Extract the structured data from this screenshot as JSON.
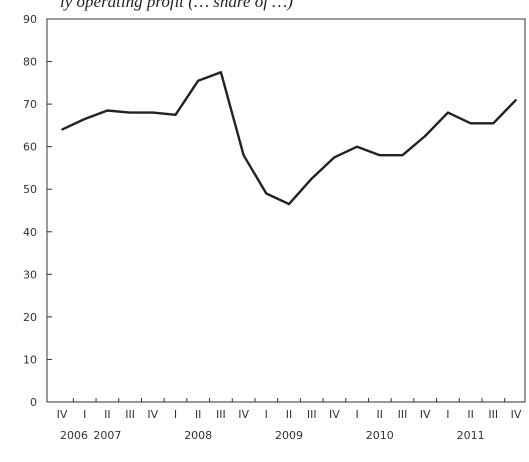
{
  "chart_data": {
    "type": "line",
    "title": "ly operating profit (… share of …)",
    "ylim": [
      0,
      90
    ],
    "yticks": [
      0,
      10,
      20,
      30,
      40,
      50,
      60,
      70,
      80,
      90
    ],
    "grid": false,
    "x_quarter_labels": [
      "IV",
      "I",
      "II",
      "III",
      "IV",
      "I",
      "II",
      "III",
      "IV",
      "I",
      "II",
      "III",
      "IV",
      "I",
      "II",
      "III",
      "IV",
      "I",
      "II",
      "III",
      "IV"
    ],
    "x_year_labels": [
      {
        "label": "2006",
        "quarter_index": 0
      },
      {
        "label": "2007",
        "quarter_index": 2
      },
      {
        "label": "2008",
        "quarter_index": 6
      },
      {
        "label": "2009",
        "quarter_index": 10
      },
      {
        "label": "2010",
        "quarter_index": 14
      },
      {
        "label": "2011",
        "quarter_index": 18
      }
    ],
    "series": [
      {
        "x": [
          "2006 Q4",
          "2007 Q1",
          "2007 Q2",
          "2007 Q3",
          "2007 Q4",
          "2008 Q1",
          "2008 Q2",
          "2008 Q3",
          "2008 Q4",
          "2009 Q1",
          "2009 Q2",
          "2009 Q3",
          "2009 Q4",
          "2010 Q1",
          "2010 Q2",
          "2010 Q3",
          "2010 Q4",
          "2011 Q1",
          "2011 Q2",
          "2011 Q3",
          "2011 Q4"
        ],
        "values": [
          64,
          66.5,
          68.5,
          68,
          68,
          67.5,
          75.5,
          77.5,
          58,
          49,
          46.5,
          52.5,
          57.5,
          60,
          58,
          58,
          62.5,
          68,
          65.5,
          65.5,
          71
        ]
      }
    ],
    "color": "#222222"
  }
}
